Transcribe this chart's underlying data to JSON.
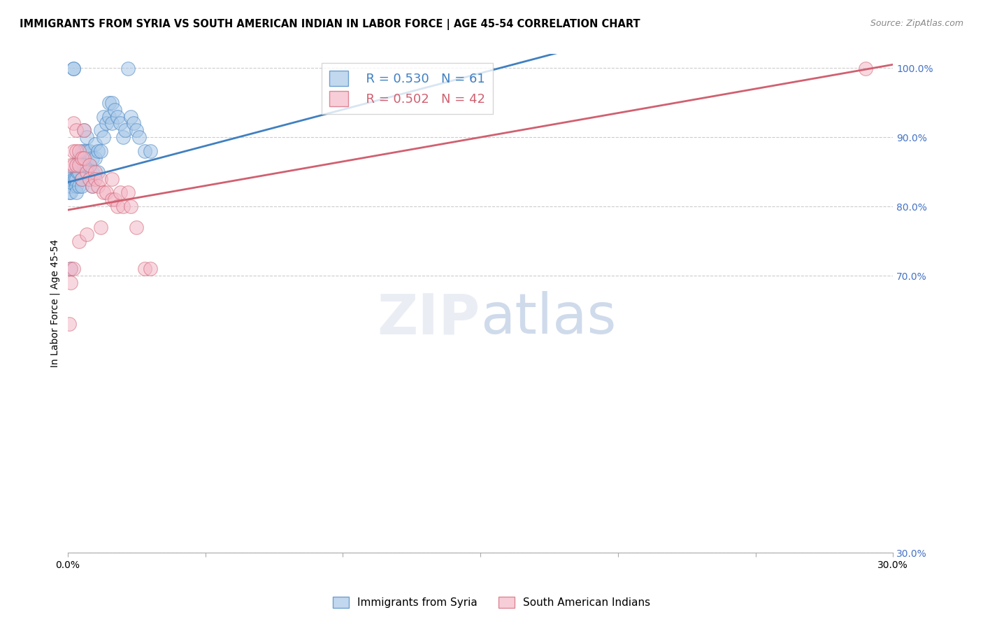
{
  "title": "IMMIGRANTS FROM SYRIA VS SOUTH AMERICAN INDIAN IN LABOR FORCE | AGE 45-54 CORRELATION CHART",
  "source": "Source: ZipAtlas.com",
  "ylabel": "In Labor Force | Age 45-54",
  "r_syria": 0.53,
  "n_syria": 61,
  "r_saindian": 0.502,
  "n_saindian": 42,
  "legend_entries": [
    "Immigrants from Syria",
    "South American Indians"
  ],
  "blue_color": "#a8c8e8",
  "pink_color": "#f4b8c8",
  "blue_line_color": "#4080c0",
  "pink_line_color": "#d06070",
  "xmin": 0.0,
  "xmax": 0.3,
  "ymin": 0.3,
  "ymax": 1.02,
  "right_yticks": [
    1.0,
    0.9,
    0.8,
    0.7,
    0.3
  ],
  "right_yticklabels": [
    "100.0%",
    "90.0%",
    "80.0%",
    "70.0%",
    "30.0%"
  ],
  "xticks": [
    0.0,
    0.05,
    0.1,
    0.15,
    0.2,
    0.25,
    0.3
  ],
  "xticklabels": [
    "0.0%",
    "",
    "",
    "",
    "",
    "",
    "30.0%"
  ],
  "syria_x": [
    0.0005,
    0.0005,
    0.001,
    0.001,
    0.001,
    0.0015,
    0.0015,
    0.002,
    0.002,
    0.002,
    0.0025,
    0.003,
    0.003,
    0.003,
    0.003,
    0.0035,
    0.004,
    0.004,
    0.004,
    0.005,
    0.005,
    0.005,
    0.005,
    0.006,
    0.006,
    0.006,
    0.007,
    0.007,
    0.007,
    0.008,
    0.008,
    0.008,
    0.009,
    0.009,
    0.009,
    0.01,
    0.01,
    0.011,
    0.011,
    0.012,
    0.012,
    0.013,
    0.013,
    0.014,
    0.015,
    0.015,
    0.016,
    0.016,
    0.017,
    0.018,
    0.019,
    0.02,
    0.021,
    0.022,
    0.023,
    0.024,
    0.025,
    0.026,
    0.028,
    0.03,
    0.001
  ],
  "syria_y": [
    0.84,
    0.82,
    0.84,
    0.83,
    0.82,
    0.845,
    0.835,
    0.999,
    0.999,
    0.84,
    0.84,
    0.86,
    0.84,
    0.83,
    0.82,
    0.85,
    0.87,
    0.85,
    0.83,
    0.88,
    0.86,
    0.84,
    0.83,
    0.91,
    0.88,
    0.86,
    0.9,
    0.88,
    0.86,
    0.88,
    0.86,
    0.84,
    0.87,
    0.85,
    0.83,
    0.89,
    0.87,
    0.88,
    0.85,
    0.91,
    0.88,
    0.93,
    0.9,
    0.92,
    0.95,
    0.93,
    0.95,
    0.92,
    0.94,
    0.93,
    0.92,
    0.9,
    0.91,
    0.999,
    0.93,
    0.92,
    0.91,
    0.9,
    0.88,
    0.88,
    0.71
  ],
  "saindian_x": [
    0.0005,
    0.001,
    0.001,
    0.002,
    0.002,
    0.002,
    0.003,
    0.003,
    0.003,
    0.004,
    0.004,
    0.005,
    0.005,
    0.006,
    0.006,
    0.007,
    0.008,
    0.008,
    0.009,
    0.01,
    0.01,
    0.011,
    0.012,
    0.013,
    0.014,
    0.016,
    0.016,
    0.017,
    0.018,
    0.019,
    0.02,
    0.022,
    0.023,
    0.025,
    0.028,
    0.03,
    0.001,
    0.002,
    0.004,
    0.007,
    0.012,
    0.29
  ],
  "saindian_y": [
    0.63,
    0.69,
    0.86,
    0.92,
    0.88,
    0.86,
    0.91,
    0.88,
    0.86,
    0.88,
    0.86,
    0.87,
    0.84,
    0.91,
    0.87,
    0.85,
    0.86,
    0.84,
    0.83,
    0.85,
    0.84,
    0.83,
    0.84,
    0.82,
    0.82,
    0.84,
    0.81,
    0.81,
    0.8,
    0.82,
    0.8,
    0.82,
    0.8,
    0.77,
    0.71,
    0.71,
    0.71,
    0.71,
    0.75,
    0.76,
    0.77,
    0.999
  ],
  "blue_regline": [
    0.0,
    0.3,
    0.835,
    1.15
  ],
  "pink_regline": [
    0.0,
    0.3,
    0.795,
    1.005
  ]
}
